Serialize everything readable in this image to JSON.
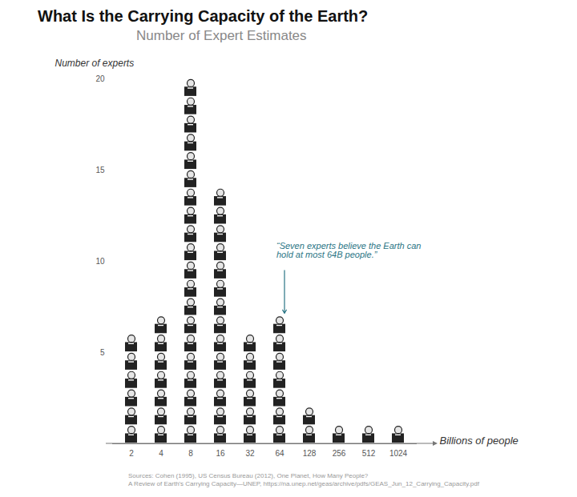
{
  "chart_data": {
    "type": "bar",
    "title": "What Is the Carrying Capacity of the Earth?",
    "subtitle": "Number of Expert Estimates",
    "ylabel": "Number of experts",
    "xlabel": "Billions of people",
    "categories": [
      "2",
      "4",
      "8",
      "16",
      "32",
      "64",
      "128",
      "256",
      "512",
      "1024"
    ],
    "values": [
      6,
      7,
      20,
      14,
      6,
      7,
      2,
      1,
      1,
      1
    ],
    "color": "#222222",
    "ylim": [
      0,
      20
    ],
    "yticks": [
      5,
      10,
      15,
      20
    ],
    "grid": false,
    "annotation": {
      "text": "“Seven experts believe the Earth can hold at most 64B people.”",
      "category": "64",
      "color": "#2a7585"
    },
    "source": [
      "Sources: Cohen (1995), US Census Bureau (2012), One Planet, How Many People?",
      "A Review of Earth's Carrying Capacity—UNEP, https://na.unep.net/geas/archive/pdfs/GEAS_Jun_12_Carrying_Capacity.pdf"
    ]
  }
}
